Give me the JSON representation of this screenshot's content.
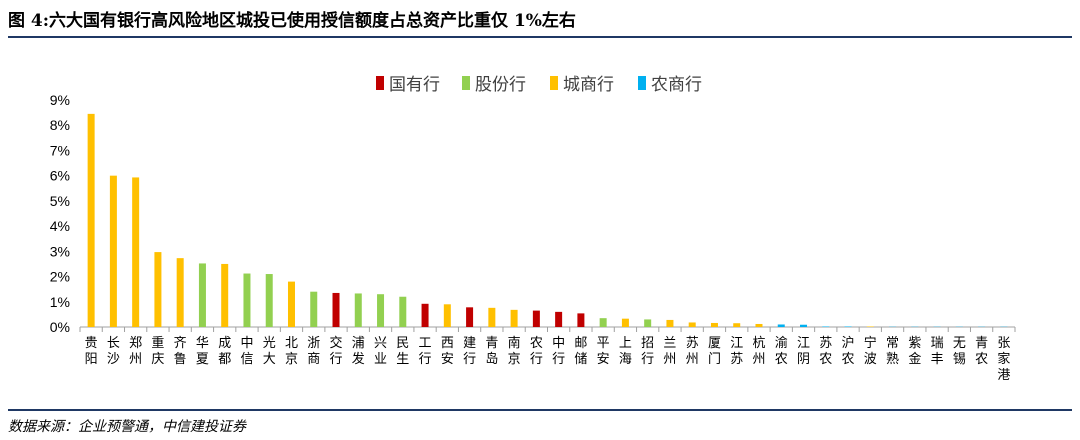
{
  "header": {
    "title": "图 4:六大国有银行高风险地区城投已使用授信额度占总资产比重仅 1%左右"
  },
  "footer": {
    "source": "数据来源：企业预警通，中信建投证券"
  },
  "chart_data": {
    "type": "bar",
    "title": "",
    "xlabel": "",
    "ylabel": "",
    "ylim": [
      0,
      9
    ],
    "yticks": [
      "0%",
      "1%",
      "2%",
      "3%",
      "4%",
      "5%",
      "6%",
      "7%",
      "8%",
      "9%"
    ],
    "grid": false,
    "legend_position": "top-center",
    "legend": [
      {
        "name": "国有行",
        "color": "#c00000"
      },
      {
        "name": "股份行",
        "color": "#92d050"
      },
      {
        "name": "城商行",
        "color": "#ffc000"
      },
      {
        "name": "农商行",
        "color": "#00b0f0"
      }
    ],
    "categories": [
      "贵阳",
      "长沙",
      "郑州",
      "重庆",
      "齐鲁",
      "华夏",
      "成都",
      "中信",
      "光大",
      "北京",
      "浙商",
      "交行",
      "浦发",
      "兴业",
      "民生",
      "工行",
      "西安",
      "建行",
      "青岛",
      "南京",
      "农行",
      "中行",
      "邮储",
      "平安",
      "上海",
      "招行",
      "兰州",
      "苏州",
      "厦门",
      "江苏",
      "杭州",
      "渝农",
      "江阴",
      "苏农",
      "沪农",
      "宁波",
      "常熟",
      "紫金",
      "瑞丰",
      "无锡",
      "青农",
      "张家港"
    ],
    "bank_types": [
      "城商行",
      "城商行",
      "城商行",
      "城商行",
      "城商行",
      "股份行",
      "城商行",
      "股份行",
      "股份行",
      "城商行",
      "股份行",
      "国有行",
      "股份行",
      "股份行",
      "股份行",
      "国有行",
      "城商行",
      "国有行",
      "城商行",
      "城商行",
      "国有行",
      "国有行",
      "国有行",
      "股份行",
      "城商行",
      "股份行",
      "城商行",
      "城商行",
      "城商行",
      "城商行",
      "城商行",
      "农商行",
      "农商行",
      "农商行",
      "农商行",
      "城商行",
      "农商行",
      "农商行",
      "农商行",
      "农商行",
      "农商行",
      "农商行"
    ],
    "values": [
      8.45,
      6.0,
      5.93,
      2.97,
      2.73,
      2.52,
      2.5,
      2.12,
      2.1,
      1.8,
      1.4,
      1.35,
      1.33,
      1.3,
      1.2,
      0.92,
      0.9,
      0.78,
      0.76,
      0.68,
      0.65,
      0.6,
      0.54,
      0.35,
      0.33,
      0.3,
      0.28,
      0.18,
      0.16,
      0.15,
      0.12,
      0.1,
      0.09,
      0.02,
      0.02,
      0.02,
      0.01,
      0.01,
      0.01,
      0.01,
      0.01,
      0.01
    ]
  }
}
